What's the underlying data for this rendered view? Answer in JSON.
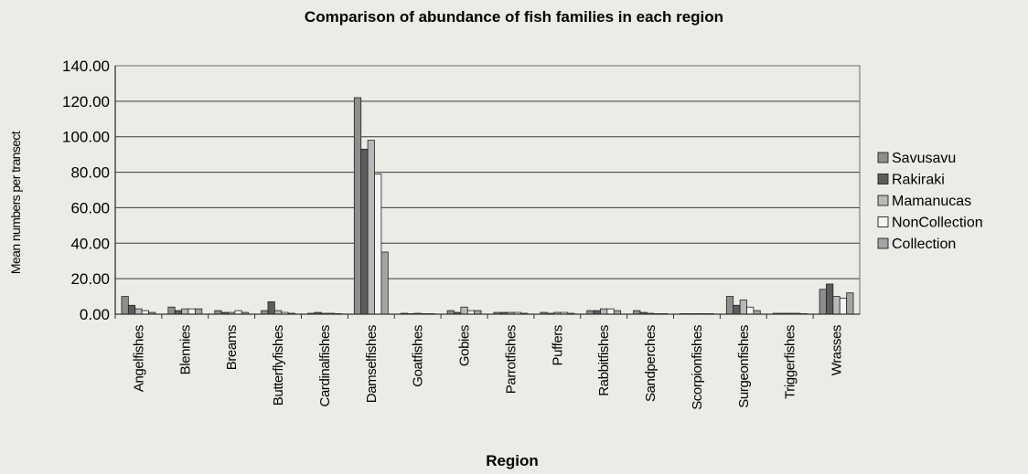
{
  "chart_data": {
    "type": "bar",
    "title": "Comparison of abundance of fish families in each region",
    "xlabel": "Region",
    "ylabel": "Mean numbers per transect",
    "ylim": [
      0,
      140
    ],
    "y_ticks": [
      "0.00",
      "20.00",
      "40.00",
      "60.00",
      "80.00",
      "100.00",
      "120.00",
      "140.00"
    ],
    "grid": true,
    "legend_position": "right",
    "categories": [
      "Angelfishes",
      "Blennies",
      "Breams",
      "Butterflyfishes",
      "Cardinalfishes",
      "Damselfishes",
      "Goatfishes",
      "Gobies",
      "Parrotfishes",
      "Puffers",
      "Rabbitfishes",
      "Sandperches",
      "Scorpionfishes",
      "Surgeonfishes",
      "Triggerfishes",
      "Wrasses"
    ],
    "series": [
      {
        "name": "Savusavu",
        "color": "#8e8e8e",
        "values": [
          10.0,
          4.0,
          2.0,
          2.0,
          0.5,
          122.0,
          0.5,
          2.0,
          1.0,
          1.0,
          2.0,
          2.0,
          0.3,
          10.0,
          0.5,
          14.0
        ]
      },
      {
        "name": "Rakiraki",
        "color": "#5c5c5c",
        "values": [
          5.0,
          2.0,
          1.0,
          7.0,
          1.0,
          93.0,
          0.3,
          1.0,
          1.0,
          0.5,
          2.0,
          1.0,
          0.3,
          5.0,
          0.5,
          17.0
        ]
      },
      {
        "name": "Mamanucas",
        "color": "#b8b8b8",
        "values": [
          3.0,
          3.0,
          1.0,
          2.0,
          0.5,
          98.0,
          0.5,
          4.0,
          1.0,
          1.0,
          3.0,
          0.5,
          0.3,
          8.0,
          0.5,
          10.0
        ]
      },
      {
        "name": "NonCollection",
        "color": "#f4f4f2",
        "values": [
          2.0,
          3.0,
          2.0,
          1.0,
          0.5,
          79.0,
          0.3,
          2.0,
          1.0,
          1.0,
          3.0,
          0.3,
          0.3,
          4.0,
          0.5,
          9.0
        ]
      },
      {
        "name": "Collection",
        "color": "#a3a3a3",
        "values": [
          1.0,
          3.0,
          1.0,
          0.5,
          0.3,
          35.0,
          0.3,
          2.0,
          0.5,
          0.5,
          2.0,
          0.3,
          0.3,
          2.0,
          0.3,
          12.0
        ]
      }
    ]
  }
}
